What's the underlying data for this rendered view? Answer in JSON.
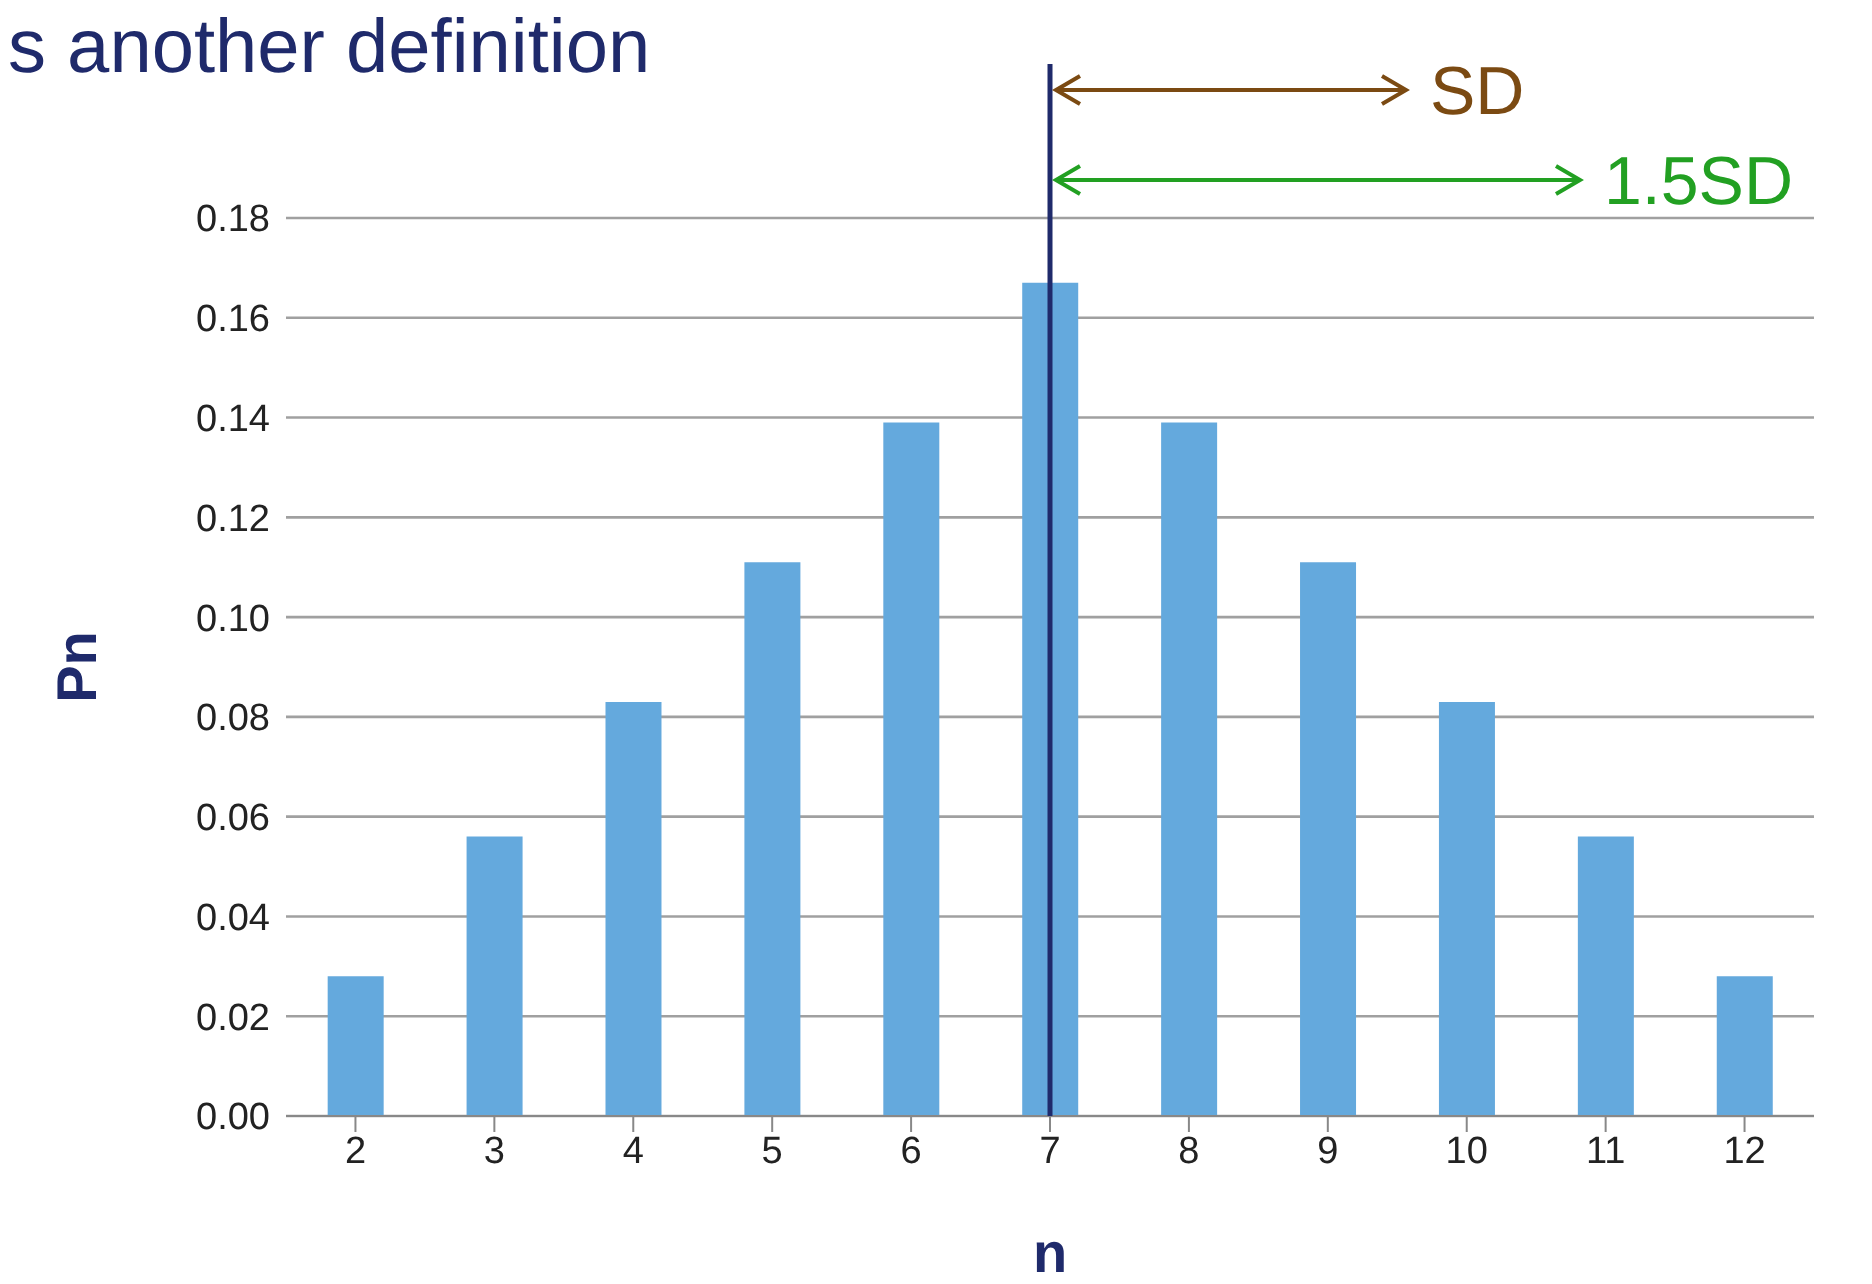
{
  "chart_data": {
    "type": "bar",
    "title": "s another definition",
    "xlabel": "n",
    "ylabel": "Pn",
    "categories": [
      "2",
      "3",
      "4",
      "5",
      "6",
      "7",
      "8",
      "9",
      "10",
      "11",
      "12"
    ],
    "values": [
      0.028,
      0.056,
      0.083,
      0.111,
      0.139,
      0.167,
      0.139,
      0.111,
      0.083,
      0.056,
      0.028
    ],
    "color": "#64a9dd",
    "ylim": [
      0,
      0.18
    ],
    "yticks": [
      {
        "value": 0,
        "label": "0.00"
      },
      {
        "value": 0.02,
        "label": "0.02"
      },
      {
        "value": 0.04,
        "label": "0.04"
      },
      {
        "value": 0.06,
        "label": "0.06"
      },
      {
        "value": 0.08,
        "label": "0.08"
      },
      {
        "value": 0.1,
        "label": "0.10"
      },
      {
        "value": 0.12,
        "label": "0.12"
      },
      {
        "value": 0.14,
        "label": "0.14"
      },
      {
        "value": 0.16,
        "label": "0.16"
      },
      {
        "value": 0.18,
        "label": "0.18"
      }
    ],
    "grid": "y",
    "ref_lines": [
      {
        "axis": "x",
        "value": "7",
        "color": "#1f2a6b",
        "line_style": "solid"
      }
    ],
    "annotations": [
      "SD",
      "1.5SD"
    ]
  }
}
